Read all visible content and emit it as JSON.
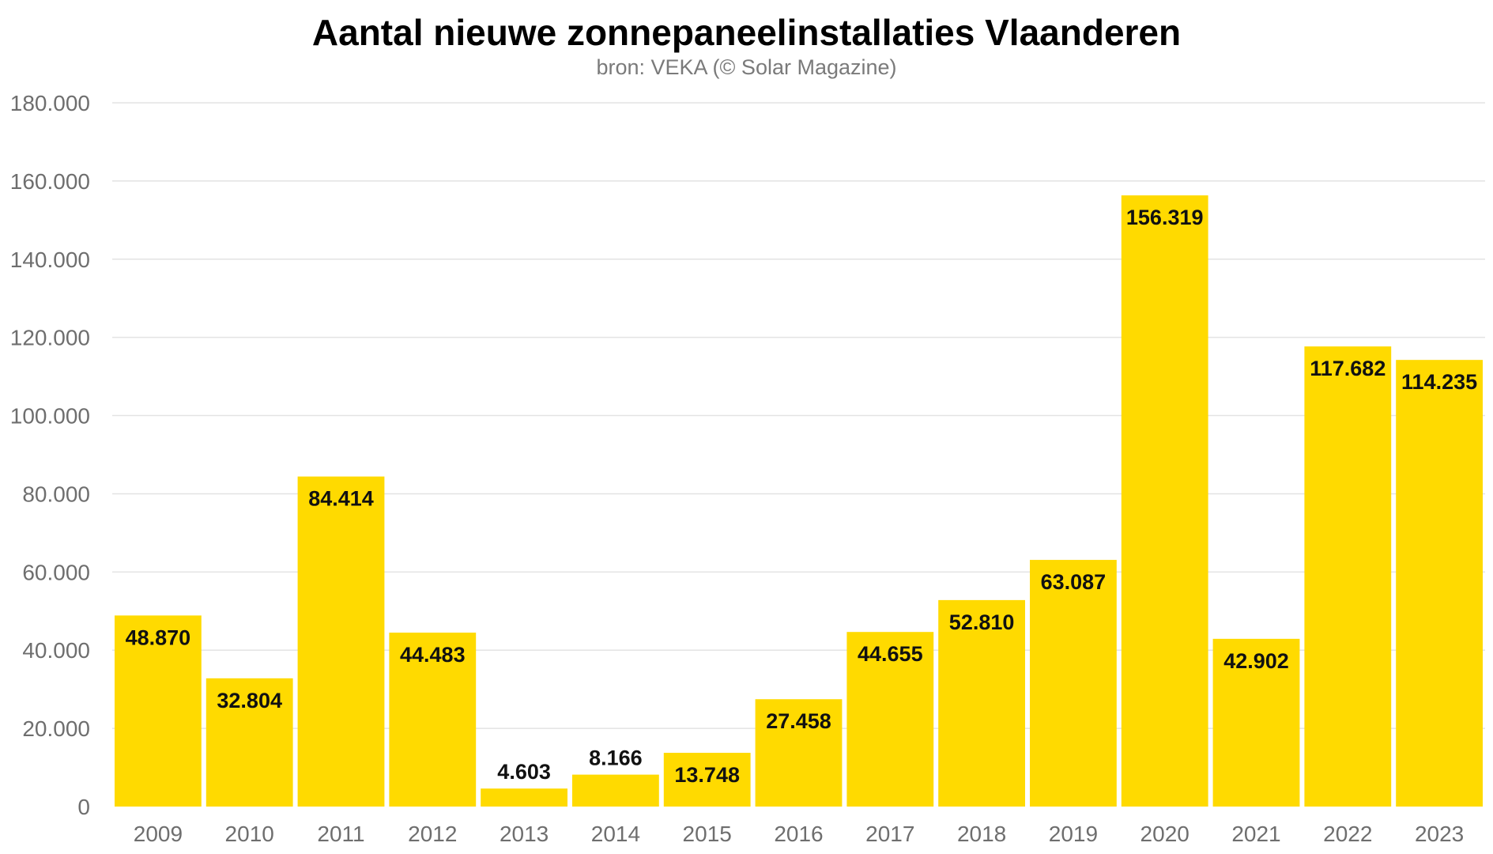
{
  "chart_data": {
    "type": "bar",
    "title": "Aantal nieuwe zonnepaneelinstallaties Vlaanderen",
    "subtitle": "bron: VEKA (© Solar Magazine)",
    "categories": [
      "2009",
      "2010",
      "2011",
      "2012",
      "2013",
      "2014",
      "2015",
      "2016",
      "2017",
      "2018",
      "2019",
      "2020",
      "2021",
      "2022",
      "2023"
    ],
    "values": [
      48870,
      32804,
      84414,
      44483,
      4603,
      8166,
      13748,
      27458,
      44655,
      52810,
      63087,
      156319,
      42902,
      117682,
      114235
    ],
    "value_labels": [
      "48.870",
      "32.804",
      "84.414",
      "44.483",
      "4.603",
      "8.166",
      "13.748",
      "27.458",
      "44.655",
      "52.810",
      "63.087",
      "156.319",
      "42.902",
      "117.682",
      "114.235"
    ],
    "yticks": [
      0,
      20000,
      40000,
      60000,
      80000,
      100000,
      120000,
      140000,
      160000,
      180000
    ],
    "ytick_labels": [
      "0",
      "20.000",
      "40.000",
      "60.000",
      "80.000",
      "100.000",
      "120.000",
      "140.000",
      "160.000",
      "180.000"
    ],
    "ylim": [
      0,
      180000
    ],
    "xlabel": "",
    "ylabel": "",
    "grid": true,
    "bar_color": "#FFDA00",
    "gridline_color": "#e3e3e3"
  }
}
